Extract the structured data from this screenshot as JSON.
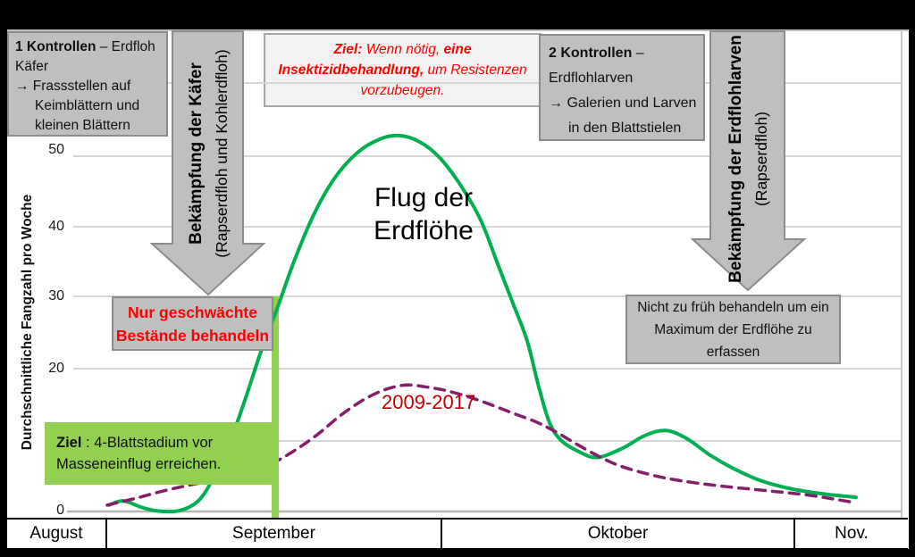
{
  "y_axis": {
    "title": "Durchschnittliche Fangzahl pro Woche",
    "tick_labels": [
      "50",
      "40",
      "30",
      "20",
      "0"
    ]
  },
  "x_axis": {
    "months": [
      "August",
      "September",
      "Oktober",
      "Nov."
    ]
  },
  "flight_label": {
    "line1": "Flug der",
    "line2": "Erdflöhe"
  },
  "series_label": "2009-2017",
  "callouts": {
    "controls1": {
      "bold": "1 Kontrollen",
      "rest": " – Erdfloh",
      "line2": "Käfer",
      "line3": "→ Frassstellen auf",
      "line4": "Keimblättern und",
      "line5": "kleinen Blättern"
    },
    "goal_insecticide": {
      "bold1": "Ziel:",
      "text1": "  Wenn nötig, ",
      "bold2": "eine Insektizidbehandlung,",
      "text2": " um Resistenzen vorzubeugen."
    },
    "controls2": {
      "bold": "2 Kontrollen",
      "rest": " –",
      "line2": "Erdflohlarven",
      "line3": "→ Galerien und Larven",
      "line4": "in den Blattstielen"
    },
    "weak_stands": "Nur geschwächte Bestände behandeln",
    "not_too_early": "Nicht zu früh behandeln um ein Maximum der Erdflöhe zu erfassen",
    "green_goal": {
      "bold": "Ziel",
      "rest": " : 4-Blattstadium vor",
      "line2": "Masseneinflug erreichen."
    }
  },
  "arrows": {
    "left": {
      "line1": "Bekämpfung der Käfer",
      "line2": "(Rapserdfloh und Kohlerdfloh)"
    },
    "right": {
      "line1": "Bekämpfung der Erdflohlarven",
      "line2": "(Rapserdfloh)"
    }
  },
  "colors": {
    "green_line": "#00b050",
    "light_green": "#92d050",
    "dashed_line": "#84206b",
    "red_text": "#ff0000",
    "dark_red_text": "#c00000",
    "gray_box": "#bfbfbf",
    "gridline": "#d6d6d6"
  },
  "chart_data": {
    "type": "line",
    "title": "Flug der Erdflöhe",
    "ylabel": "Durchschnittliche Fangzahl pro Woche",
    "ylim": [
      0,
      60
    ],
    "y_ticks_visible": [
      50,
      40,
      30,
      20,
      0
    ],
    "grid": true,
    "x_axis_categories": [
      "August",
      "September",
      "Oktober",
      "Nov."
    ],
    "x_unit_note": "x values are horizontal positions along the unlabeled time axis (Aug–Nov), in page px; y values are catches per week",
    "series": [
      {
        "name": "Flug der Erdflöhe",
        "style": "solid",
        "color": "#00b050",
        "points": [
          [
            122,
            0.9
          ],
          [
            138,
            1.5
          ],
          [
            158,
            0.6
          ],
          [
            175,
            0.1
          ],
          [
            200,
            0.1
          ],
          [
            222,
            1.5
          ],
          [
            240,
            5
          ],
          [
            258,
            10
          ],
          [
            275,
            16
          ],
          [
            292,
            22.5
          ],
          [
            310,
            28.5
          ],
          [
            330,
            35.5
          ],
          [
            352,
            42
          ],
          [
            375,
            47
          ],
          [
            400,
            50.5
          ],
          [
            425,
            52.4
          ],
          [
            447,
            52.9
          ],
          [
            470,
            52
          ],
          [
            492,
            49.8
          ],
          [
            515,
            46
          ],
          [
            538,
            41
          ],
          [
            558,
            34.5
          ],
          [
            575,
            29
          ],
          [
            590,
            24
          ],
          [
            603,
            17.5
          ],
          [
            615,
            12.5
          ],
          [
            628,
            10
          ],
          [
            648,
            8.4
          ],
          [
            668,
            7.6
          ],
          [
            695,
            8.8
          ],
          [
            722,
            10.7
          ],
          [
            745,
            11.4
          ],
          [
            768,
            10.3
          ],
          [
            795,
            7.9
          ],
          [
            820,
            6.1
          ],
          [
            850,
            4.4
          ],
          [
            885,
            3.2
          ],
          [
            920,
            2.5
          ],
          [
            958,
            2.0
          ]
        ]
      },
      {
        "name": "2009-2017",
        "style": "dashed",
        "color": "#84206b",
        "points": [
          [
            120,
            0.9
          ],
          [
            150,
            1.8
          ],
          [
            180,
            2.8
          ],
          [
            215,
            3.8
          ],
          [
            250,
            4.6
          ],
          [
            280,
            5.6
          ],
          [
            305,
            6.8
          ],
          [
            330,
            8.6
          ],
          [
            355,
            10.8
          ],
          [
            382,
            13.6
          ],
          [
            408,
            15.8
          ],
          [
            432,
            17.2
          ],
          [
            455,
            17.8
          ],
          [
            478,
            17.5
          ],
          [
            500,
            17
          ],
          [
            525,
            16.1
          ],
          [
            550,
            15
          ],
          [
            575,
            13.8
          ],
          [
            600,
            12.6
          ],
          [
            622,
            11.2
          ],
          [
            645,
            9.5
          ],
          [
            668,
            7.9
          ],
          [
            690,
            6.6
          ],
          [
            715,
            5.6
          ],
          [
            745,
            4.7
          ],
          [
            780,
            4.0
          ],
          [
            820,
            3.4
          ],
          [
            860,
            2.9
          ],
          [
            905,
            2.3
          ],
          [
            955,
            1.3
          ]
        ]
      }
    ],
    "annotations": {
      "green_window_bar": "vertical light-green bar marking the treatment window at the steep rise of the flight curve",
      "peak_value_approx": 52.9,
      "dashed_peak_value_approx": 17.8
    }
  }
}
